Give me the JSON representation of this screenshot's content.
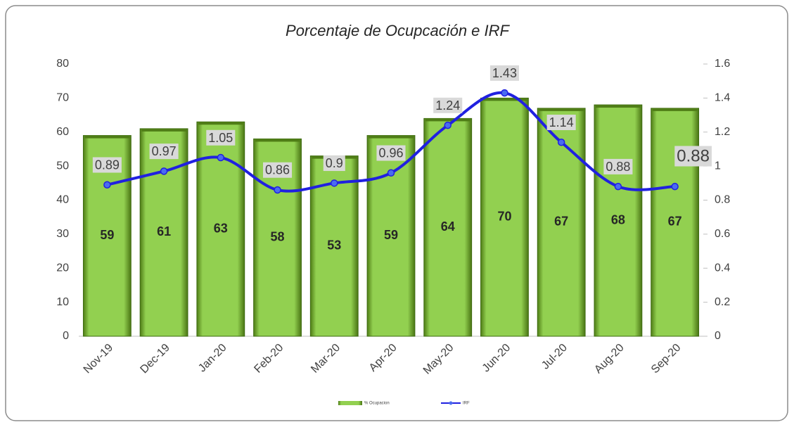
{
  "chart_data": {
    "type": "bar",
    "title": "Porcentaje de Ocupcación e IRF",
    "categories": [
      "Nov-19",
      "Dec-19",
      "Jan-20",
      "Feb-20",
      "Mar-20",
      "Apr-20",
      "May-20",
      "Jun-20",
      "Jul-20",
      "Aug-20",
      "Sep-20"
    ],
    "series": [
      {
        "name": "% Ocupacion",
        "type": "bar",
        "color": "#92d050",
        "values": [
          59,
          61,
          63,
          58,
          53,
          59,
          64,
          70,
          67,
          68,
          67
        ]
      },
      {
        "name": "IRF",
        "type": "line",
        "axis": "y2",
        "color": "#2020e0",
        "values": [
          0.89,
          0.97,
          1.05,
          0.86,
          0.9,
          0.96,
          1.24,
          1.43,
          1.14,
          0.88,
          0.88
        ]
      }
    ],
    "ylim": [
      0,
      80
    ],
    "yticks": [
      0,
      10,
      20,
      30,
      40,
      50,
      60,
      70,
      80
    ],
    "y2lim": [
      0,
      1.6
    ],
    "y2ticks": [
      0,
      0.2,
      0.4,
      0.6,
      0.8,
      1,
      1.2,
      1.4,
      1.6
    ],
    "grid": false,
    "legend": "bottom"
  }
}
